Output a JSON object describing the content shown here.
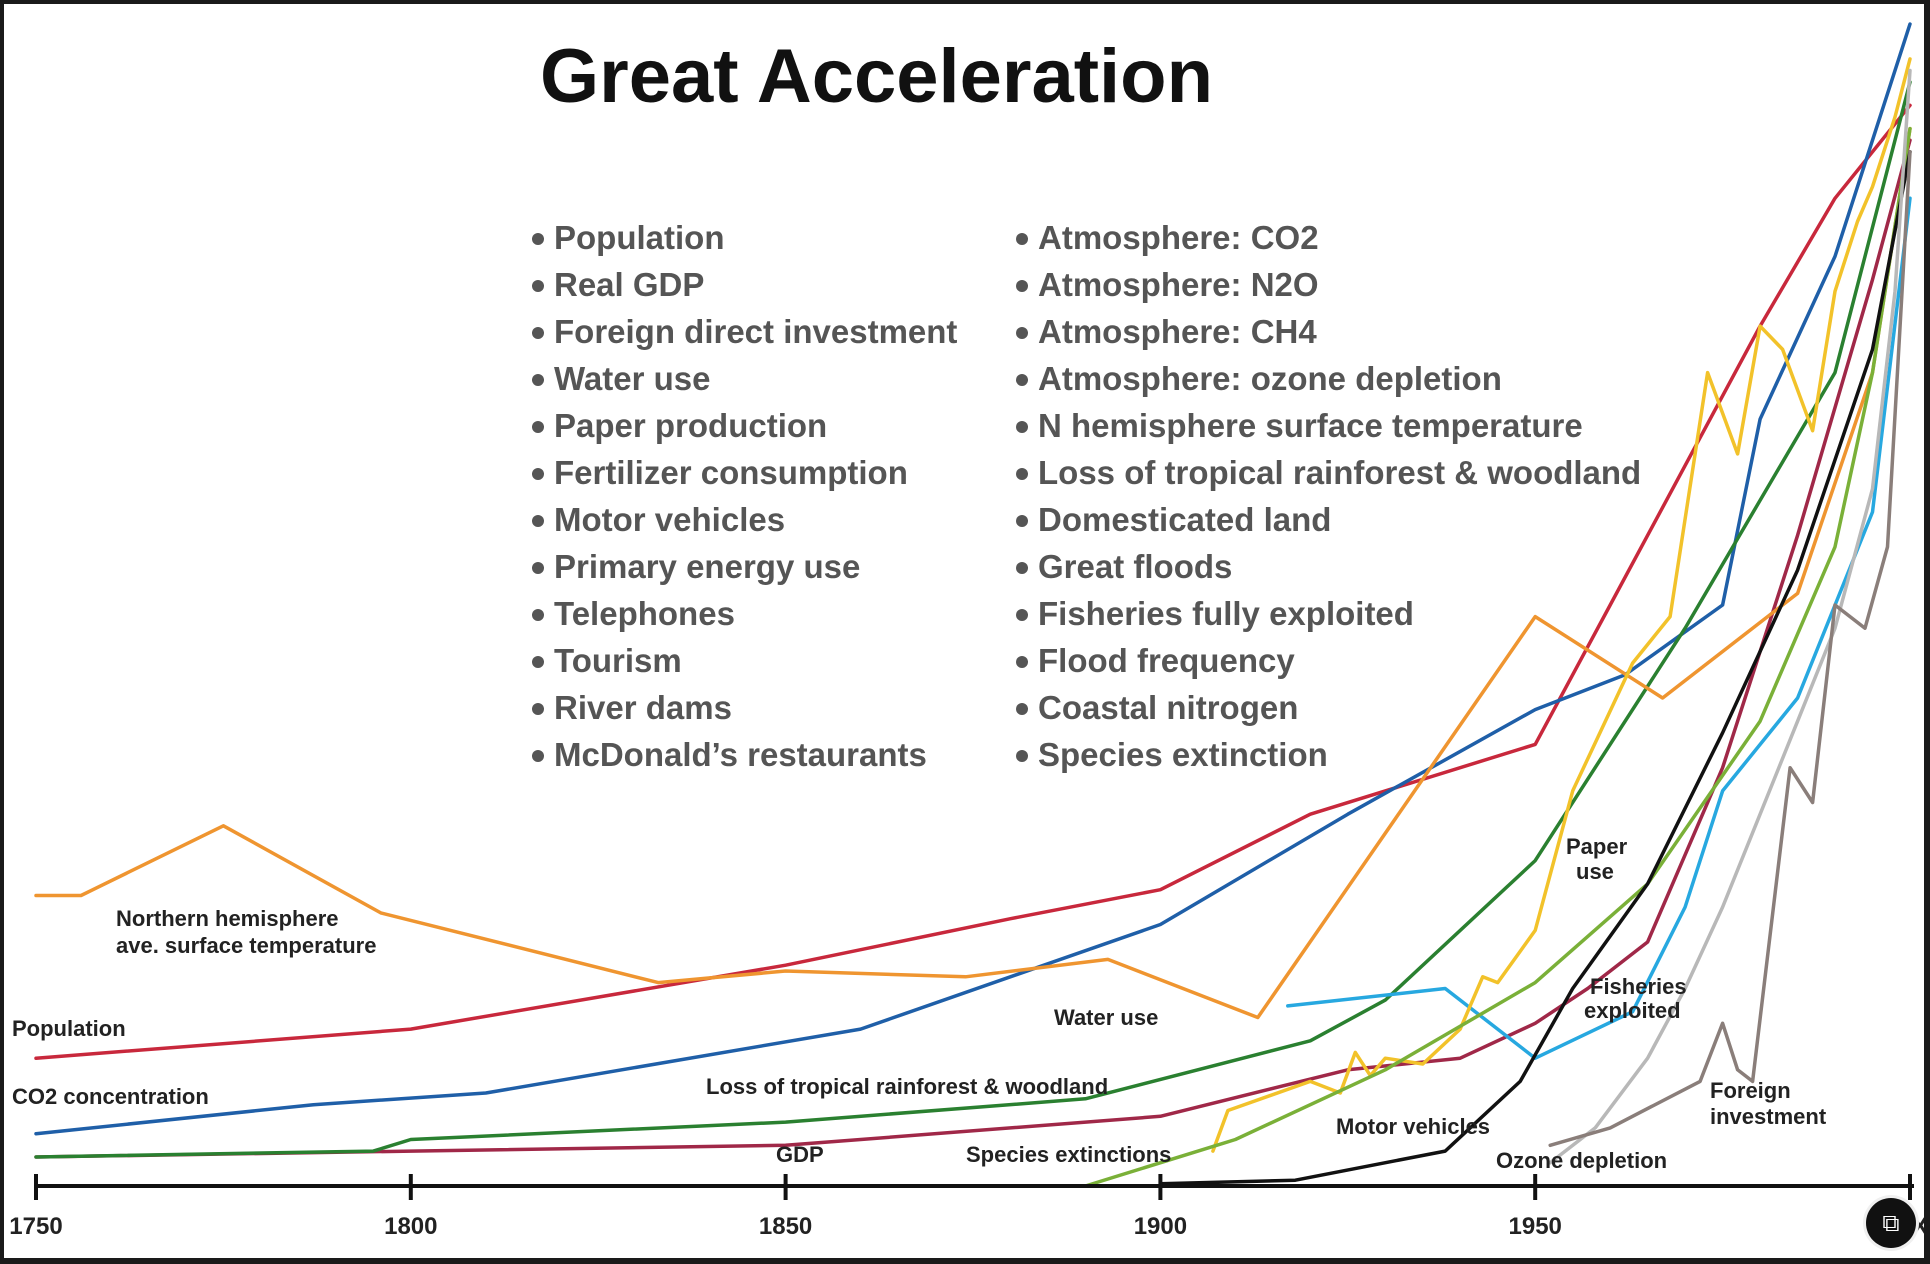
{
  "chart_data": {
    "type": "line",
    "title": "Great Acceleration",
    "xlim": [
      1750,
      2000
    ],
    "ylim": [
      0,
      100
    ],
    "x_ticks": [
      1750,
      1800,
      1850,
      1900,
      1950
    ],
    "x_tick_cut": "XX",
    "left_list": [
      "Population",
      "Real GDP",
      "Foreign direct investment",
      "Water use",
      "Paper production",
      "Fertilizer consumption",
      "Motor vehicles",
      "Primary energy use",
      "Telephones",
      "Tourism",
      "River dams",
      "McDonald’s restaurants"
    ],
    "right_list": [
      "Atmosphere: CO2",
      "Atmosphere: N2O",
      "Atmosphere: CH4",
      "Atmosphere: ozone depletion",
      "N hemisphere surface temperature",
      "Loss of tropical rainforest & woodland",
      "Domesticated land",
      "Great floods",
      "Fisheries fully exploited",
      "Flood frequency",
      "Coastal nitrogen",
      "Species extinction"
    ],
    "series": [
      {
        "name": "Population",
        "color": "#c8283c",
        "x": [
          1750,
          1800,
          1850,
          1880,
          1900,
          1920,
          1950,
          1960,
          1970,
          1980,
          1990,
          2000
        ],
        "y": [
          11,
          13.5,
          19,
          23,
          25.5,
          32,
          38,
          50,
          62,
          74,
          85,
          93
        ]
      },
      {
        "name": "CO2 concentration",
        "color": "#1f5fa8",
        "x": [
          1750,
          1787,
          1810,
          1860,
          1900,
          1925,
          1950,
          1962,
          1975,
          1980,
          1990,
          2000
        ],
        "y": [
          4.5,
          7,
          8,
          13.5,
          22.5,
          32,
          41,
          44,
          50,
          66,
          80,
          100
        ]
      },
      {
        "name": "GDP",
        "color": "#a02848",
        "x": [
          1750,
          1800,
          1850,
          1900,
          1925,
          1940,
          1950,
          1957,
          1965,
          1975,
          1985,
          1995,
          2000
        ],
        "y": [
          2.5,
          3,
          3.5,
          6,
          10,
          11,
          14,
          17,
          21,
          36,
          56,
          78,
          90
        ]
      },
      {
        "name": "Loss of tropical rainforest & woodland",
        "color": "#2a8030",
        "x": [
          1750,
          1795,
          1800,
          1850,
          1890,
          1920,
          1930,
          1950,
          1970,
          1990,
          2000
        ],
        "y": [
          2.5,
          3,
          4,
          5.5,
          7.5,
          12.5,
          16,
          28,
          48,
          70,
          95
        ]
      },
      {
        "name": "Northern hemisphere ave. surface temperature",
        "color": "#ef9530",
        "x": [
          1750,
          1756,
          1775,
          1796,
          1833,
          1850,
          1874,
          1893,
          1913,
          1950,
          1967,
          1985,
          1995,
          2000
        ],
        "y": [
          25,
          25,
          31,
          23.5,
          17.5,
          18.5,
          18,
          19.5,
          14.5,
          49,
          42,
          51,
          70,
          91
        ]
      },
      {
        "name": "Water use",
        "color": "#27a8e0",
        "x": [
          1917,
          1938,
          1950,
          1963,
          1970,
          1975,
          1985,
          1995,
          2000
        ],
        "y": [
          15.5,
          17,
          11,
          15,
          24,
          34,
          42,
          58,
          85
        ]
      },
      {
        "name": "Paper use",
        "color": "#f2c22a",
        "x": [
          1907,
          1909,
          1920,
          1924,
          1926,
          1928,
          1930,
          1935,
          1940,
          1943,
          1945,
          1950,
          1955,
          1963,
          1968,
          1973,
          1977,
          1980,
          1983,
          1987,
          1990,
          1993,
          1995,
          1998,
          2000
        ],
        "y": [
          3,
          6.5,
          9,
          8,
          11.5,
          9.5,
          11,
          10.5,
          13.5,
          18,
          17.5,
          22,
          34,
          45,
          49,
          70,
          63,
          74,
          72,
          65,
          77,
          83,
          86,
          92,
          97
        ]
      },
      {
        "name": "Fisheries exploited",
        "color": "#7ab038",
        "x": [
          1890,
          1910,
          1930,
          1950,
          1965,
          1980,
          1990,
          1995,
          2000
        ],
        "y": [
          0,
          4,
          10,
          17.5,
          26,
          40,
          55,
          70,
          91
        ]
      },
      {
        "name": "Motor vehicles",
        "color": "#111111",
        "x": [
          1900,
          1918,
          1938,
          1948,
          1955,
          1965,
          1975,
          1985,
          1995,
          2000
        ],
        "y": [
          0.2,
          0.5,
          3,
          9,
          17,
          26,
          39,
          53,
          72,
          89
        ]
      },
      {
        "name": "Ozone depletion",
        "color": "#b8b8b8",
        "x": [
          1952,
          1958,
          1965,
          1970,
          1975,
          1980,
          1985,
          1990,
          1995,
          1998,
          2000
        ],
        "y": [
          2,
          5,
          11,
          17,
          24,
          32,
          40,
          48,
          60,
          77,
          96
        ]
      },
      {
        "name": "Foreign investment",
        "color": "#8a7e7a",
        "x": [
          1952,
          1960,
          1972,
          1975,
          1977,
          1979,
          1984,
          1987,
          1990,
          1994,
          1997,
          2000
        ],
        "y": [
          3.5,
          5,
          9,
          14,
          10,
          9,
          36,
          33,
          50,
          48,
          55,
          89
        ]
      }
    ],
    "annotations": {
      "northern_hemisphere_l1": "Northern hemisphere",
      "northern_hemisphere_l2": "ave. surface temperature",
      "population": "Population",
      "co2": "CO2 concentration",
      "water_use": "Water use",
      "rainforest": "Loss of tropical rainforest & woodland",
      "gdp": "GDP",
      "species": "Species extinctions",
      "motor": "Motor vehicles",
      "ozone": "Ozone depletion",
      "paper_l1": "Paper",
      "paper_l2": "use",
      "fisheries_l1": "Fisheries",
      "fisheries_l2": "exploited",
      "foreign_l1": "Foreign",
      "foreign_l2": "investment"
    }
  },
  "overlay": {
    "scan_icon": "scan-text-icon",
    "scan_glyph": "⧉"
  }
}
